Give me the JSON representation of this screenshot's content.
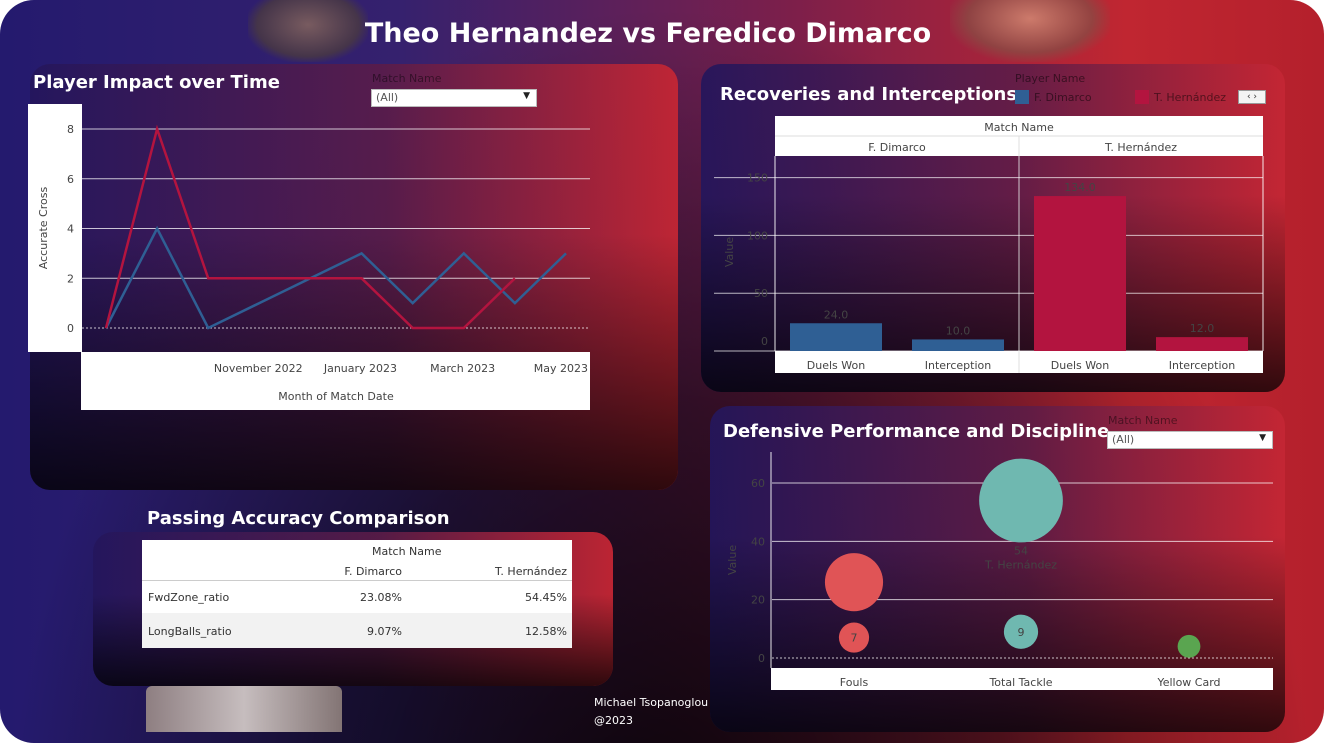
{
  "title": "Theo Hernandez vs Feredico Dimarco",
  "credit": {
    "author": "Michael Tsopanoglou",
    "year": "@2023"
  },
  "colors": {
    "dimarco": "#2f5f94",
    "hernandez": "#b3143f",
    "fouls": "#e05456",
    "tackle": "#6fb8b0",
    "yellow": "#5aa550"
  },
  "impact": {
    "title": "Player Impact over Time",
    "filter_label": "Match Name",
    "filter_value": "(All)",
    "chart_data": {
      "type": "line",
      "xlabel": "Month of Match Date",
      "ylabel": "Accurate Cross",
      "x_tick_labels": [
        "November 2022",
        "January 2023",
        "March 2023",
        "May 2023"
      ],
      "ylim": [
        0,
        8
      ],
      "y_ticks": [
        0,
        2,
        4,
        6,
        8
      ],
      "months": [
        "2022-09",
        "2022-10",
        "2022-11",
        "2022-12",
        "2023-01",
        "2023-02",
        "2023-03",
        "2023-04",
        "2023-05",
        "2023-06"
      ],
      "series": [
        {
          "name": "F. Dimarco",
          "values": [
            0,
            4,
            0,
            1,
            2,
            3,
            1,
            3,
            1,
            3
          ]
        },
        {
          "name": "T. Hernández",
          "values": [
            0,
            8,
            2,
            2,
            2,
            2,
            0,
            0,
            2,
            null
          ]
        }
      ]
    }
  },
  "recoveries": {
    "title": "Recoveries and Interceptions",
    "legend_title": "Player Name",
    "legend": [
      "F. Dimarco",
      "T. Hernández"
    ],
    "pager": "‹ ›",
    "chart_data": {
      "type": "bar",
      "header": "Match Name",
      "groups": [
        "F. Dimarco",
        "T. Hernández"
      ],
      "categories": [
        "Duels Won",
        "Interception"
      ],
      "ylabel": "Value",
      "ylim": [
        0,
        160
      ],
      "y_ticks": [
        0,
        50,
        100,
        150
      ],
      "series": [
        {
          "name": "F. Dimarco",
          "values": [
            24,
            10
          ],
          "labels": [
            "24.0",
            "10.0"
          ]
        },
        {
          "name": "T. Hernández",
          "values": [
            134,
            12
          ],
          "labels": [
            "134.0",
            "12.0"
          ]
        }
      ]
    }
  },
  "defensive": {
    "title": "Defensive Performance and Discipline",
    "filter_label": "Match Name",
    "filter_value": "(All)",
    "chart_data": {
      "type": "scatter",
      "ylabel": "Value",
      "ylim": [
        0,
        70
      ],
      "y_ticks": [
        0,
        20,
        40,
        60
      ],
      "categories": [
        "Fouls",
        "Total Tackle",
        "Yellow Card"
      ],
      "points": [
        {
          "category": "Fouls",
          "value": 26,
          "label": ""
        },
        {
          "category": "Fouls",
          "value": 7,
          "label": "7"
        },
        {
          "category": "Total Tackle",
          "value": 54,
          "label": "54",
          "sublabel": "T. Hernández"
        },
        {
          "category": "Total Tackle",
          "value": 9,
          "label": "9"
        },
        {
          "category": "Yellow Card",
          "value": 4,
          "label": ""
        }
      ]
    }
  },
  "passing": {
    "title": "Passing Accuracy Comparison",
    "header": "Match Name",
    "columns": [
      "F. Dimarco",
      "T. Hernández"
    ],
    "rows": [
      {
        "metric": "FwdZone_ratio",
        "values": [
          "23.08%",
          "54.45%"
        ]
      },
      {
        "metric": "LongBalls_ratio",
        "values": [
          "9.07%",
          "12.58%"
        ]
      }
    ]
  }
}
